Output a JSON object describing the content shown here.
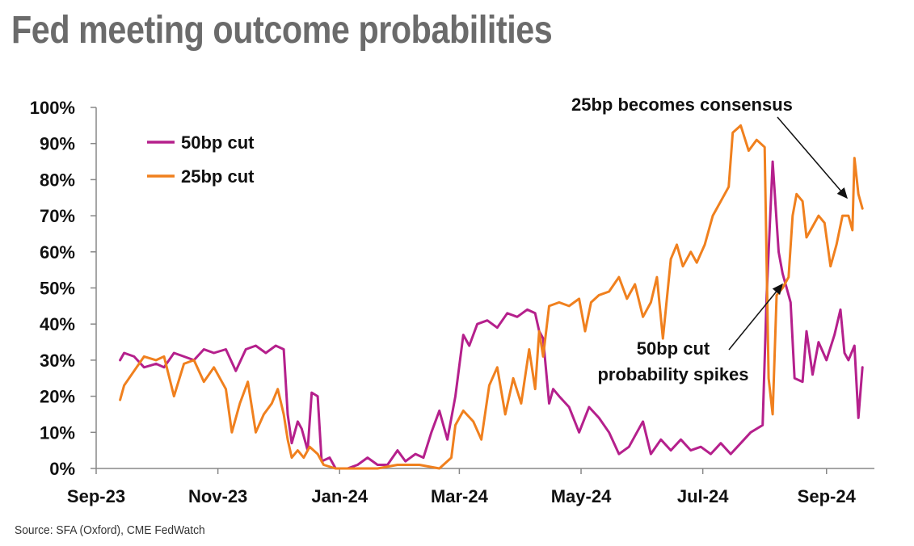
{
  "title": "Fed meeting outcome probabilities",
  "source": "Source: SFA (Oxford), CME FedWatch",
  "chart_data": {
    "type": "line",
    "title": "Fed meeting outcome probabilities",
    "xlabel": "",
    "ylabel": "",
    "ylim": [
      0,
      100
    ],
    "xlim": [
      "2023-09-01",
      "2024-09-25"
    ],
    "y_ticks": [
      "0%",
      "10%",
      "20%",
      "30%",
      "40%",
      "50%",
      "60%",
      "70%",
      "80%",
      "90%",
      "100%"
    ],
    "x_ticks": [
      {
        "label": "Sep-23",
        "date": "2023-09-01"
      },
      {
        "label": "Nov-23",
        "date": "2023-11-01"
      },
      {
        "label": "Jan-24",
        "date": "2024-01-01"
      },
      {
        "label": "Mar-24",
        "date": "2024-03-01"
      },
      {
        "label": "May-24",
        "date": "2024-05-01"
      },
      {
        "label": "Jul-24",
        "date": "2024-07-01"
      },
      {
        "label": "Sep-24",
        "date": "2024-09-01"
      }
    ],
    "legend_position": "top-left",
    "annotations": [
      {
        "text": "25bp becomes consensus"
      },
      {
        "text": "50bp cut"
      },
      {
        "text": "probability spikes"
      }
    ],
    "series": [
      {
        "name": "50bp cut",
        "color": "#b5208c",
        "points": [
          [
            "2023-09-13",
            30
          ],
          [
            "2023-09-15",
            32
          ],
          [
            "2023-09-20",
            31
          ],
          [
            "2023-09-25",
            28
          ],
          [
            "2023-10-01",
            29
          ],
          [
            "2023-10-05",
            28
          ],
          [
            "2023-10-10",
            32
          ],
          [
            "2023-10-15",
            31
          ],
          [
            "2023-10-20",
            30
          ],
          [
            "2023-10-25",
            33
          ],
          [
            "2023-10-30",
            32
          ],
          [
            "2023-11-05",
            33
          ],
          [
            "2023-11-10",
            27
          ],
          [
            "2023-11-15",
            33
          ],
          [
            "2023-11-20",
            34
          ],
          [
            "2023-11-25",
            32
          ],
          [
            "2023-11-30",
            34
          ],
          [
            "2023-12-04",
            33
          ],
          [
            "2023-12-06",
            15
          ],
          [
            "2023-12-08",
            7
          ],
          [
            "2023-12-11",
            13
          ],
          [
            "2023-12-13",
            11
          ],
          [
            "2023-12-16",
            5
          ],
          [
            "2023-12-18",
            21
          ],
          [
            "2023-12-21",
            20
          ],
          [
            "2023-12-23",
            2
          ],
          [
            "2023-12-27",
            3
          ],
          [
            "2023-12-30",
            0
          ],
          [
            "2024-01-05",
            0
          ],
          [
            "2024-01-10",
            1
          ],
          [
            "2024-01-15",
            3
          ],
          [
            "2024-01-20",
            1
          ],
          [
            "2024-01-25",
            1
          ],
          [
            "2024-01-30",
            5
          ],
          [
            "2024-02-03",
            2
          ],
          [
            "2024-02-08",
            4
          ],
          [
            "2024-02-12",
            3
          ],
          [
            "2024-02-16",
            10
          ],
          [
            "2024-02-20",
            16
          ],
          [
            "2024-02-24",
            8
          ],
          [
            "2024-02-28",
            20
          ],
          [
            "2024-03-03",
            37
          ],
          [
            "2024-03-06",
            34
          ],
          [
            "2024-03-10",
            40
          ],
          [
            "2024-03-15",
            41
          ],
          [
            "2024-03-20",
            39
          ],
          [
            "2024-03-25",
            43
          ],
          [
            "2024-03-30",
            42
          ],
          [
            "2024-04-04",
            44
          ],
          [
            "2024-04-08",
            43
          ],
          [
            "2024-04-10",
            38
          ],
          [
            "2024-04-12",
            36
          ],
          [
            "2024-04-15",
            18
          ],
          [
            "2024-04-17",
            22
          ],
          [
            "2024-04-20",
            20
          ],
          [
            "2024-04-25",
            17
          ],
          [
            "2024-04-30",
            10
          ],
          [
            "2024-05-05",
            17
          ],
          [
            "2024-05-10",
            14
          ],
          [
            "2024-05-15",
            10
          ],
          [
            "2024-05-20",
            4
          ],
          [
            "2024-05-25",
            6
          ],
          [
            "2024-05-30",
            11
          ],
          [
            "2024-06-01",
            13
          ],
          [
            "2024-06-05",
            4
          ],
          [
            "2024-06-10",
            8
          ],
          [
            "2024-06-15",
            5
          ],
          [
            "2024-06-20",
            8
          ],
          [
            "2024-06-25",
            5
          ],
          [
            "2024-06-30",
            6
          ],
          [
            "2024-07-05",
            4
          ],
          [
            "2024-07-10",
            7
          ],
          [
            "2024-07-15",
            4
          ],
          [
            "2024-07-20",
            7
          ],
          [
            "2024-07-25",
            10
          ],
          [
            "2024-07-31",
            12
          ],
          [
            "2024-08-02",
            48
          ],
          [
            "2024-08-05",
            85
          ],
          [
            "2024-08-08",
            60
          ],
          [
            "2024-08-10",
            54
          ],
          [
            "2024-08-12",
            50
          ],
          [
            "2024-08-14",
            46
          ],
          [
            "2024-08-16",
            25
          ],
          [
            "2024-08-20",
            24
          ],
          [
            "2024-08-22",
            38
          ],
          [
            "2024-08-25",
            26
          ],
          [
            "2024-08-28",
            35
          ],
          [
            "2024-09-01",
            30
          ],
          [
            "2024-09-05",
            37
          ],
          [
            "2024-09-08",
            44
          ],
          [
            "2024-09-10",
            32
          ],
          [
            "2024-09-12",
            30
          ],
          [
            "2024-09-15",
            34
          ],
          [
            "2024-09-17",
            14
          ],
          [
            "2024-09-19",
            28
          ]
        ]
      },
      {
        "name": "25bp cut",
        "color": "#f0801e",
        "points": [
          [
            "2023-09-13",
            19
          ],
          [
            "2023-09-15",
            23
          ],
          [
            "2023-09-20",
            27
          ],
          [
            "2023-09-25",
            31
          ],
          [
            "2023-10-01",
            30
          ],
          [
            "2023-10-05",
            31
          ],
          [
            "2023-10-10",
            20
          ],
          [
            "2023-10-15",
            29
          ],
          [
            "2023-10-20",
            30
          ],
          [
            "2023-10-25",
            24
          ],
          [
            "2023-10-30",
            28
          ],
          [
            "2023-11-05",
            22
          ],
          [
            "2023-11-08",
            10
          ],
          [
            "2023-11-12",
            18
          ],
          [
            "2023-11-16",
            24
          ],
          [
            "2023-11-20",
            10
          ],
          [
            "2023-11-24",
            15
          ],
          [
            "2023-11-28",
            18
          ],
          [
            "2023-12-01",
            22
          ],
          [
            "2023-12-04",
            15
          ],
          [
            "2023-12-06",
            8
          ],
          [
            "2023-12-08",
            3
          ],
          [
            "2023-12-11",
            5
          ],
          [
            "2023-12-14",
            3
          ],
          [
            "2023-12-17",
            6
          ],
          [
            "2023-12-21",
            4
          ],
          [
            "2023-12-24",
            1
          ],
          [
            "2023-12-30",
            0
          ],
          [
            "2024-01-10",
            0
          ],
          [
            "2024-01-20",
            0
          ],
          [
            "2024-01-30",
            1
          ],
          [
            "2024-02-10",
            1
          ],
          [
            "2024-02-20",
            0
          ],
          [
            "2024-02-26",
            3
          ],
          [
            "2024-02-28",
            12
          ],
          [
            "2024-03-03",
            16
          ],
          [
            "2024-03-08",
            13
          ],
          [
            "2024-03-12",
            8
          ],
          [
            "2024-03-16",
            23
          ],
          [
            "2024-03-20",
            28
          ],
          [
            "2024-03-24",
            15
          ],
          [
            "2024-03-28",
            25
          ],
          [
            "2024-04-01",
            18
          ],
          [
            "2024-04-05",
            33
          ],
          [
            "2024-04-08",
            22
          ],
          [
            "2024-04-10",
            38
          ],
          [
            "2024-04-12",
            31
          ],
          [
            "2024-04-15",
            45
          ],
          [
            "2024-04-20",
            46
          ],
          [
            "2024-04-25",
            45
          ],
          [
            "2024-04-30",
            47
          ],
          [
            "2024-05-03",
            38
          ],
          [
            "2024-05-06",
            46
          ],
          [
            "2024-05-10",
            48
          ],
          [
            "2024-05-15",
            49
          ],
          [
            "2024-05-20",
            53
          ],
          [
            "2024-05-24",
            47
          ],
          [
            "2024-05-28",
            51
          ],
          [
            "2024-06-01",
            42
          ],
          [
            "2024-06-05",
            46
          ],
          [
            "2024-06-08",
            53
          ],
          [
            "2024-06-11",
            36
          ],
          [
            "2024-06-15",
            58
          ],
          [
            "2024-06-18",
            62
          ],
          [
            "2024-06-21",
            56
          ],
          [
            "2024-06-25",
            60
          ],
          [
            "2024-06-28",
            57
          ],
          [
            "2024-07-02",
            62
          ],
          [
            "2024-07-06",
            70
          ],
          [
            "2024-07-10",
            74
          ],
          [
            "2024-07-14",
            78
          ],
          [
            "2024-07-16",
            93
          ],
          [
            "2024-07-20",
            95
          ],
          [
            "2024-07-24",
            88
          ],
          [
            "2024-07-28",
            91
          ],
          [
            "2024-08-01",
            89
          ],
          [
            "2024-08-03",
            25
          ],
          [
            "2024-08-05",
            15
          ],
          [
            "2024-08-07",
            48
          ],
          [
            "2024-08-10",
            50
          ],
          [
            "2024-08-13",
            53
          ],
          [
            "2024-08-15",
            70
          ],
          [
            "2024-08-17",
            76
          ],
          [
            "2024-08-20",
            74
          ],
          [
            "2024-08-22",
            64
          ],
          [
            "2024-08-25",
            67
          ],
          [
            "2024-08-28",
            70
          ],
          [
            "2024-08-31",
            68
          ],
          [
            "2024-09-03",
            56
          ],
          [
            "2024-09-06",
            62
          ],
          [
            "2024-09-09",
            70
          ],
          [
            "2024-09-12",
            70
          ],
          [
            "2024-09-14",
            66
          ],
          [
            "2024-09-15",
            86
          ],
          [
            "2024-09-17",
            76
          ],
          [
            "2024-09-19",
            72
          ]
        ]
      }
    ]
  }
}
